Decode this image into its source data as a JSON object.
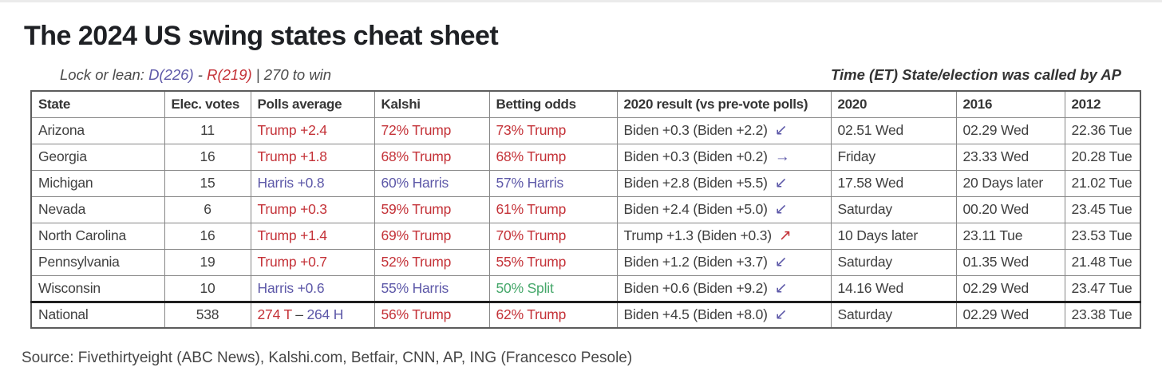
{
  "colors": {
    "rep": "#c43238",
    "dem": "#5d58a8",
    "split": "#45a76a",
    "text": "#3f3f3f"
  },
  "chart_data": {
    "type": "table",
    "title": "The 2024 US swing states cheat sheet",
    "subtitle": {
      "prefix": "Lock or lean: ",
      "dem": "D(226)",
      "dash": " - ",
      "rep": "R(219)",
      "suffix": " | 270 to win"
    },
    "right_caption": "Time (ET) State/election was called by AP",
    "columns": [
      "State",
      "Elec. votes",
      "Polls average",
      "Kalshi",
      "Betting odds",
      "2020 result (vs pre-vote polls)",
      "2020",
      "2016",
      "2012"
    ],
    "rows": [
      {
        "state": "Arizona",
        "ev": "11",
        "polls": [
          {
            "t": "Trump +2.4",
            "c": "rep"
          }
        ],
        "kalshi": [
          {
            "t": "72% Trump",
            "c": "rep"
          }
        ],
        "betting": [
          {
            "t": "73% Trump",
            "c": "rep"
          }
        ],
        "result": {
          "t": "Biden +0.3 (Biden +2.2)",
          "arrow": "↙",
          "ac": "dem"
        },
        "y2020": "02.51 Wed",
        "y2016": "02.29 Wed",
        "y2012": "22.36 Tue"
      },
      {
        "state": "Georgia",
        "ev": "16",
        "polls": [
          {
            "t": "Trump +1.8",
            "c": "rep"
          }
        ],
        "kalshi": [
          {
            "t": "68% Trump",
            "c": "rep"
          }
        ],
        "betting": [
          {
            "t": "68% Trump",
            "c": "rep"
          }
        ],
        "result": {
          "t": "Biden +0.3 (Biden +0.2)",
          "arrow": "→",
          "ac": "dem"
        },
        "y2020": "Friday",
        "y2016": "23.33 Wed",
        "y2012": "20.28 Tue"
      },
      {
        "state": "Michigan",
        "ev": "15",
        "polls": [
          {
            "t": "Harris +0.8",
            "c": "dem"
          }
        ],
        "kalshi": [
          {
            "t": "60% Harris",
            "c": "dem"
          }
        ],
        "betting": [
          {
            "t": "57% Harris",
            "c": "dem"
          }
        ],
        "result": {
          "t": "Biden +2.8 (Biden +5.5)",
          "arrow": "↙",
          "ac": "dem"
        },
        "y2020": "17.58 Wed",
        "y2016": "20 Days later",
        "y2012": "21.02 Tue"
      },
      {
        "state": "Nevada",
        "ev": "6",
        "polls": [
          {
            "t": "Trump +0.3",
            "c": "rep"
          }
        ],
        "kalshi": [
          {
            "t": "59% Trump",
            "c": "rep"
          }
        ],
        "betting": [
          {
            "t": "61% Trump",
            "c": "rep"
          }
        ],
        "result": {
          "t": "Biden +2.4 (Biden +5.0)",
          "arrow": "↙",
          "ac": "dem"
        },
        "y2020": "Saturday",
        "y2016": "00.20 Wed",
        "y2012": "23.45 Tue"
      },
      {
        "state": "North Carolina",
        "ev": "16",
        "polls": [
          {
            "t": "Trump +1.4",
            "c": "rep"
          }
        ],
        "kalshi": [
          {
            "t": "69% Trump",
            "c": "rep"
          }
        ],
        "betting": [
          {
            "t": "70% Trump",
            "c": "rep"
          }
        ],
        "result": {
          "t": "Trump +1.3 (Biden +0.3)",
          "arrow": "↗",
          "ac": "rep"
        },
        "y2020": "10 Days later",
        "y2016": "23.11 Tue",
        "y2012": "23.53 Tue"
      },
      {
        "state": "Pennsylvania",
        "ev": "19",
        "polls": [
          {
            "t": "Trump +0.7",
            "c": "rep"
          }
        ],
        "kalshi": [
          {
            "t": "52% Trump",
            "c": "rep"
          }
        ],
        "betting": [
          {
            "t": "55% Trump",
            "c": "rep"
          }
        ],
        "result": {
          "t": "Biden +1.2 (Biden +3.7)",
          "arrow": "↙",
          "ac": "dem"
        },
        "y2020": "Saturday",
        "y2016": "01.35 Wed",
        "y2012": "21.48 Tue"
      },
      {
        "state": "Wisconsin",
        "ev": "10",
        "polls": [
          {
            "t": "Harris +0.6",
            "c": "dem"
          }
        ],
        "kalshi": [
          {
            "t": "55% Harris",
            "c": "dem"
          }
        ],
        "betting": [
          {
            "t": "50% Split",
            "c": "split"
          }
        ],
        "result": {
          "t": "Biden +0.6 (Biden +9.2)",
          "arrow": "↙",
          "ac": "dem"
        },
        "y2020": "14.16 Wed",
        "y2016": "02.29 Wed",
        "y2012": "23.47 Tue"
      },
      {
        "state": "National",
        "ev": "538",
        "polls": [
          {
            "t": "274 T",
            "c": "rep"
          },
          {
            "t": " – ",
            "c": "text"
          },
          {
            "t": "264 H",
            "c": "dem"
          }
        ],
        "kalshi": [
          {
            "t": "56% Trump",
            "c": "rep"
          }
        ],
        "betting": [
          {
            "t": "62% Trump",
            "c": "rep"
          }
        ],
        "result": {
          "t": "Biden +4.5 (Biden +8.0)",
          "arrow": "↙",
          "ac": "dem"
        },
        "y2020": "Saturday",
        "y2016": "02.29 Wed",
        "y2012": "23.38 Tue"
      }
    ],
    "source": "Source: Fivethirtyeight (ABC News), Kalshi.com, Betfair, CNN, AP, ING (Francesco Pesole)"
  }
}
